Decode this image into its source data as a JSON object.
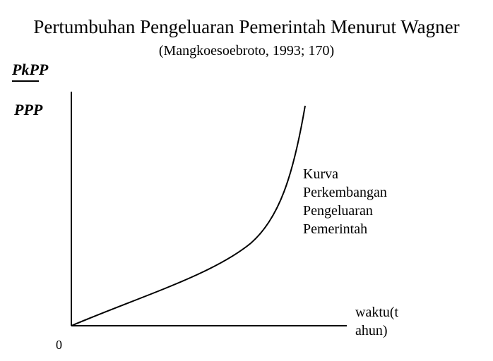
{
  "title": "Pertumbuhan Pengeluaran Pemerintah Menurut Wagner",
  "subtitle": "(Mangkoesoebroto, 1993; 170)",
  "y_axis": {
    "numerator": "PkPP",
    "denominator": "PPP"
  },
  "curve_label": {
    "line1": "Kurva",
    "line2": "Perkembangan",
    "line3": "Pengeluaran",
    "line4": "Pemerintah"
  },
  "x_axis": {
    "line1": "waktu(t",
    "line2": "ahun)"
  },
  "origin_label": "0"
}
